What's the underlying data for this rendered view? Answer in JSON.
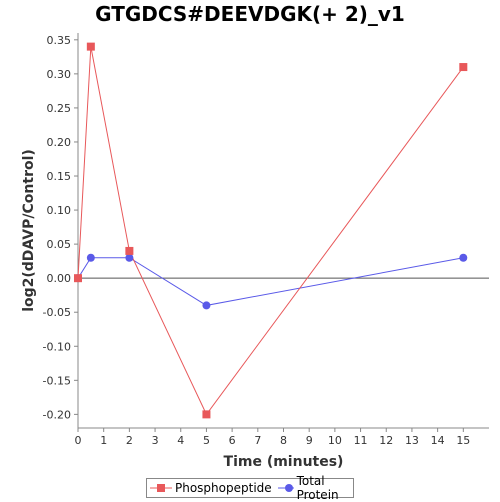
{
  "chart_data": {
    "type": "line",
    "title": "GTGDCS#DEEVDGK(+ 2)_v1",
    "xlabel": "Time (minutes)",
    "ylabel": "log2(dDAVP/Control)",
    "xlim": [
      0,
      16
    ],
    "ylim": [
      -0.22,
      0.36
    ],
    "xticks": [
      0,
      1,
      2,
      3,
      4,
      5,
      6,
      7,
      8,
      9,
      10,
      11,
      12,
      13,
      14,
      15
    ],
    "yticks": [
      0.35,
      0.3,
      0.25,
      0.2,
      0.15,
      0.1,
      0.05,
      0.0,
      -0.05,
      -0.1,
      -0.15,
      -0.2
    ],
    "ytick_labels": [
      "0.35",
      "0.30",
      "0.25",
      "0.20",
      "0.15",
      "0.10",
      "0.05",
      "0.00",
      "-0.05",
      "-0.10",
      "-0.15",
      "-0.20"
    ],
    "grid": false,
    "legend_position": "bottom",
    "series": [
      {
        "name": "Phosphopeptide",
        "color": "#e8585a",
        "marker": "square",
        "x": [
          0,
          0.5,
          2,
          5,
          15
        ],
        "y": [
          0.0,
          0.34,
          0.04,
          -0.2,
          0.31
        ]
      },
      {
        "name": "Total Protein",
        "color": "#5a5ae8",
        "marker": "circle",
        "x": [
          0,
          0.5,
          2,
          5,
          15
        ],
        "y": [
          0.0,
          0.03,
          0.03,
          -0.04,
          0.03
        ]
      }
    ]
  }
}
